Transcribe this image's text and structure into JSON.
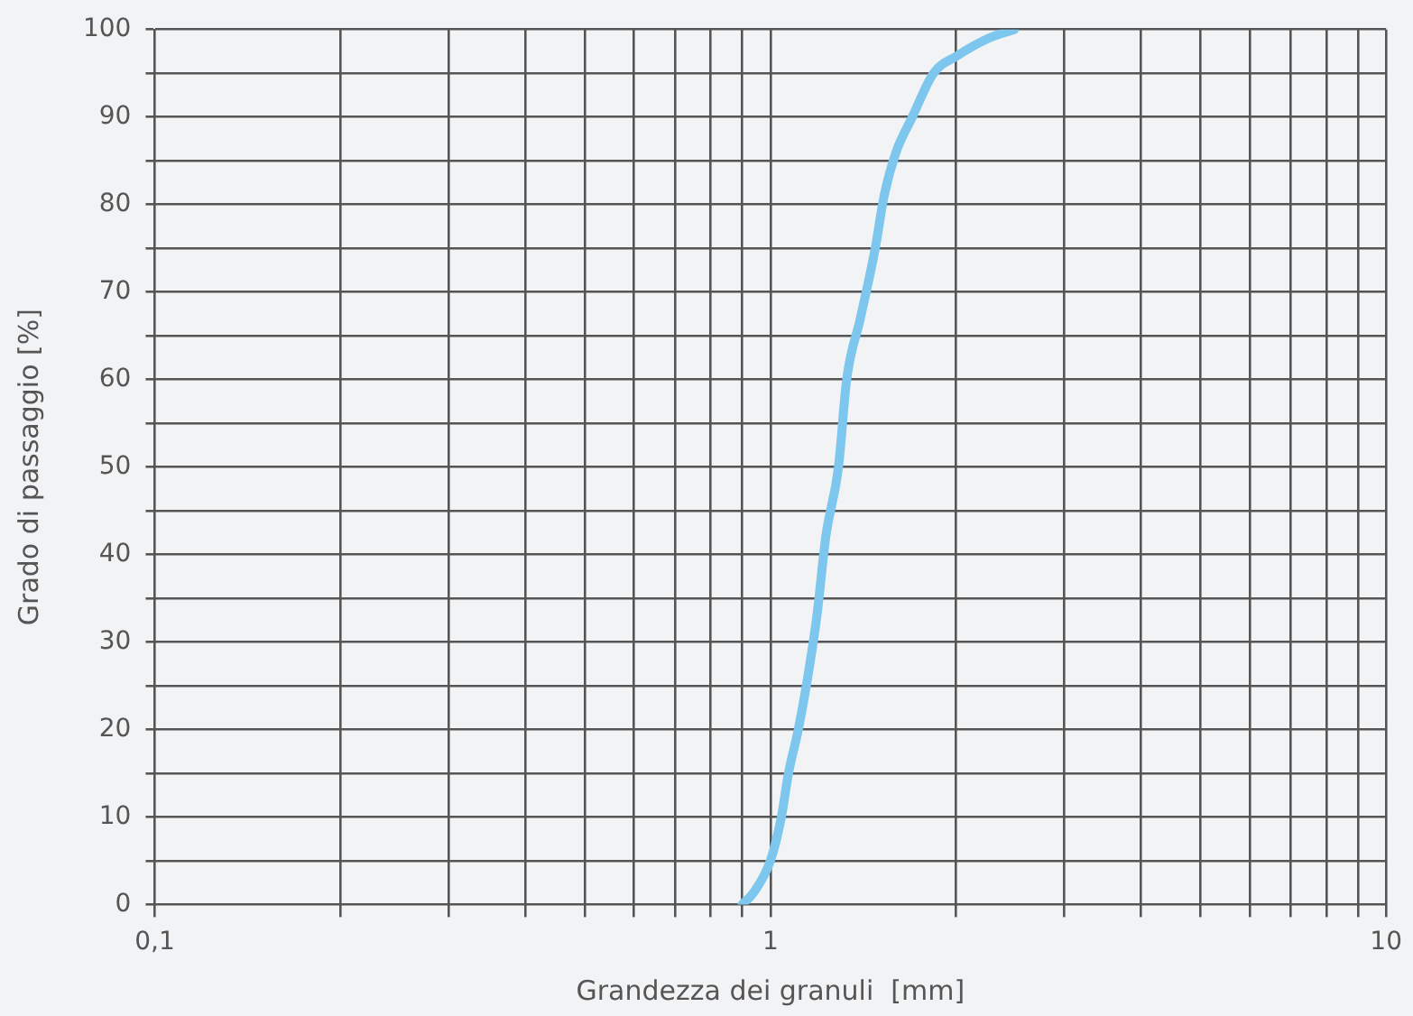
{
  "chart_data": {
    "type": "line",
    "xlabel": "Grandezza dei granuli  [mm]",
    "ylabel": "Grado di passaggio [%]",
    "log": "x",
    "grid": true,
    "marker": "none",
    "legend": false,
    "xlim": [
      0.1,
      10
    ],
    "ylim": [
      0,
      100
    ],
    "xticks": [
      {
        "value": 0.1,
        "label": "0,1"
      },
      {
        "value": 0.2,
        "label": null
      },
      {
        "value": 0.3,
        "label": null
      },
      {
        "value": 0.4,
        "label": null
      },
      {
        "value": 0.5,
        "label": null
      },
      {
        "value": 0.6,
        "label": null
      },
      {
        "value": 0.7,
        "label": null
      },
      {
        "value": 0.8,
        "label": null
      },
      {
        "value": 0.9,
        "label": null
      },
      1,
      {
        "value": 2,
        "label": null
      },
      {
        "value": 3,
        "label": null
      },
      {
        "value": 4,
        "label": null
      },
      {
        "value": 5,
        "label": null
      },
      {
        "value": 6,
        "label": null
      },
      {
        "value": 7,
        "label": null
      },
      {
        "value": 8,
        "label": null
      },
      {
        "value": 9,
        "label": null
      },
      10
    ],
    "yticks": [
      0,
      {
        "value": 5,
        "label": null
      },
      10,
      {
        "value": 15,
        "label": null
      },
      20,
      {
        "value": 25,
        "label": null
      },
      30,
      {
        "value": 35,
        "label": null
      },
      40,
      {
        "value": 45,
        "label": null
      },
      50,
      {
        "value": 55,
        "label": null
      },
      60,
      {
        "value": 65,
        "label": null
      },
      70,
      {
        "value": 75,
        "label": null
      },
      80,
      {
        "value": 85,
        "label": null
      },
      90,
      {
        "value": 95,
        "label": null
      },
      100
    ],
    "series": [
      {
        "color": "#7dc7ee",
        "x": [
          0.9,
          0.94,
          1.0,
          1.04,
          1.07,
          1.11,
          1.15,
          1.19,
          1.23,
          1.29,
          1.33,
          1.4,
          1.48,
          1.53,
          1.6,
          1.7,
          1.84,
          2.01,
          2.26,
          2.49
        ],
        "values": [
          0,
          1.4,
          5,
          9.7,
          15,
          20,
          26,
          33,
          42,
          50,
          60,
          67,
          75,
          81,
          86,
          90,
          95,
          97,
          99,
          100
        ]
      }
    ]
  }
}
